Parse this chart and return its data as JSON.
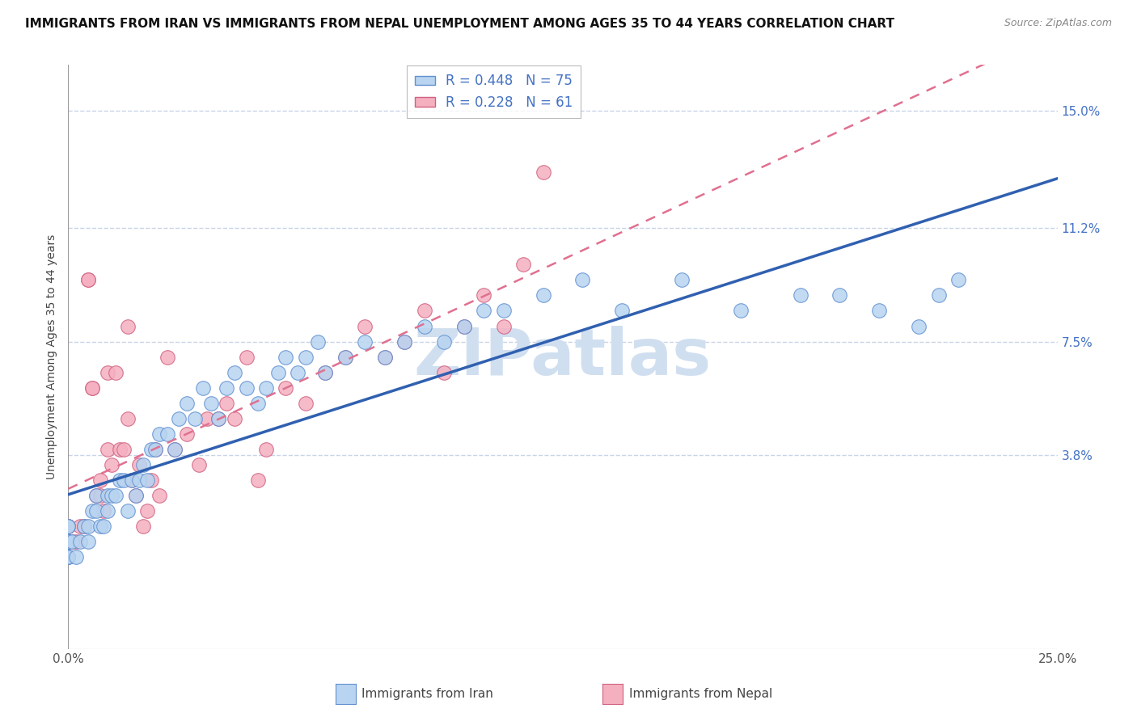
{
  "title": "IMMIGRANTS FROM IRAN VS IMMIGRANTS FROM NEPAL UNEMPLOYMENT AMONG AGES 35 TO 44 YEARS CORRELATION CHART",
  "source": "Source: ZipAtlas.com",
  "ylabel": "Unemployment Among Ages 35 to 44 years",
  "xlim": [
    0.0,
    0.25
  ],
  "ylim": [
    -0.025,
    0.165
  ],
  "ytick_positions": [
    0.038,
    0.075,
    0.112,
    0.15
  ],
  "ytick_labels": [
    "3.8%",
    "7.5%",
    "11.2%",
    "15.0%"
  ],
  "iran_R": 0.448,
  "iran_N": 75,
  "nepal_R": 0.228,
  "nepal_N": 61,
  "iran_color": "#b8d4f0",
  "nepal_color": "#f5b0c0",
  "iran_edge_color": "#6090d0",
  "nepal_edge_color": "#d06080",
  "iran_line_color": "#3060b0",
  "nepal_line_color": "#e07090",
  "watermark": "ZIPatlas",
  "watermark_color": "#d0dff0",
  "background_color": "#ffffff",
  "grid_color": "#c8d4e8",
  "title_fontsize": 11,
  "axis_label_fontsize": 10,
  "tick_fontsize": 11,
  "legend_fontsize": 12,
  "iran_x": [
    0.0,
    0.0,
    0.0,
    0.0,
    0.0,
    0.0,
    0.0,
    0.0,
    0.0,
    0.0,
    0.001,
    0.002,
    0.003,
    0.004,
    0.005,
    0.005,
    0.006,
    0.007,
    0.007,
    0.008,
    0.009,
    0.01,
    0.01,
    0.011,
    0.012,
    0.013,
    0.014,
    0.015,
    0.016,
    0.017,
    0.018,
    0.019,
    0.02,
    0.021,
    0.022,
    0.023,
    0.025,
    0.027,
    0.028,
    0.03,
    0.032,
    0.034,
    0.036,
    0.038,
    0.04,
    0.042,
    0.045,
    0.048,
    0.05,
    0.053,
    0.055,
    0.058,
    0.06,
    0.063,
    0.065,
    0.07,
    0.075,
    0.08,
    0.085,
    0.09,
    0.095,
    0.1,
    0.105,
    0.11,
    0.12,
    0.13,
    0.14,
    0.155,
    0.17,
    0.185,
    0.195,
    0.205,
    0.215,
    0.22,
    0.225
  ],
  "iran_y": [
    0.005,
    0.005,
    0.005,
    0.01,
    0.01,
    0.01,
    0.01,
    0.01,
    0.015,
    0.015,
    0.01,
    0.005,
    0.01,
    0.015,
    0.01,
    0.015,
    0.02,
    0.02,
    0.025,
    0.015,
    0.015,
    0.02,
    0.025,
    0.025,
    0.025,
    0.03,
    0.03,
    0.02,
    0.03,
    0.025,
    0.03,
    0.035,
    0.03,
    0.04,
    0.04,
    0.045,
    0.045,
    0.04,
    0.05,
    0.055,
    0.05,
    0.06,
    0.055,
    0.05,
    0.06,
    0.065,
    0.06,
    0.055,
    0.06,
    0.065,
    0.07,
    0.065,
    0.07,
    0.075,
    0.065,
    0.07,
    0.075,
    0.07,
    0.075,
    0.08,
    0.075,
    0.08,
    0.085,
    0.085,
    0.09,
    0.095,
    0.085,
    0.095,
    0.085,
    0.09,
    0.09,
    0.085,
    0.08,
    0.09,
    0.095
  ],
  "nepal_x": [
    0.0,
    0.0,
    0.0,
    0.0,
    0.0,
    0.0,
    0.0,
    0.0,
    0.001,
    0.002,
    0.003,
    0.004,
    0.005,
    0.005,
    0.006,
    0.006,
    0.007,
    0.008,
    0.008,
    0.009,
    0.01,
    0.01,
    0.011,
    0.012,
    0.013,
    0.014,
    0.015,
    0.015,
    0.016,
    0.017,
    0.018,
    0.019,
    0.02,
    0.021,
    0.022,
    0.023,
    0.025,
    0.027,
    0.03,
    0.033,
    0.035,
    0.038,
    0.04,
    0.042,
    0.045,
    0.048,
    0.05,
    0.055,
    0.06,
    0.065,
    0.07,
    0.075,
    0.08,
    0.085,
    0.09,
    0.095,
    0.1,
    0.105,
    0.11,
    0.115,
    0.12
  ],
  "nepal_y": [
    0.005,
    0.005,
    0.01,
    0.01,
    0.01,
    0.015,
    0.015,
    0.015,
    0.01,
    0.01,
    0.015,
    0.015,
    0.095,
    0.095,
    0.06,
    0.06,
    0.025,
    0.025,
    0.03,
    0.02,
    0.04,
    0.065,
    0.035,
    0.065,
    0.04,
    0.04,
    0.05,
    0.08,
    0.03,
    0.025,
    0.035,
    0.015,
    0.02,
    0.03,
    0.04,
    0.025,
    0.07,
    0.04,
    0.045,
    0.035,
    0.05,
    0.05,
    0.055,
    0.05,
    0.07,
    0.03,
    0.04,
    0.06,
    0.055,
    0.065,
    0.07,
    0.08,
    0.07,
    0.075,
    0.085,
    0.065,
    0.08,
    0.09,
    0.08,
    0.1,
    0.13
  ]
}
